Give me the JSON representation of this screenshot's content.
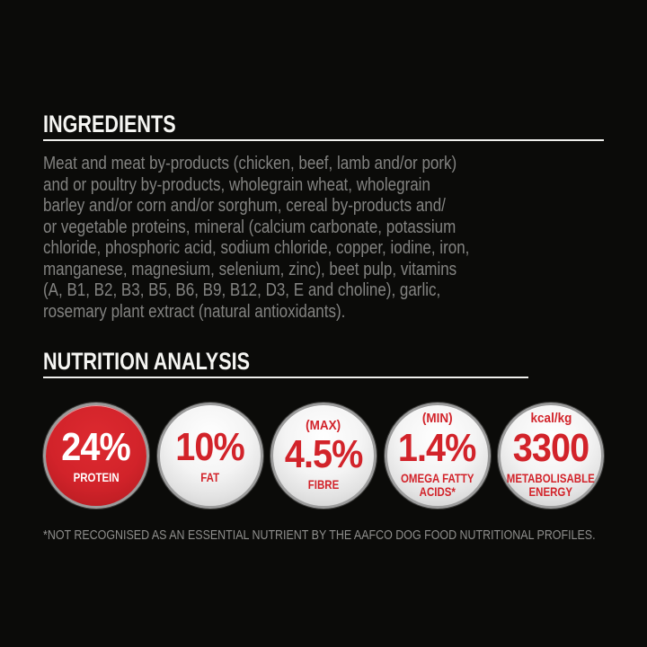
{
  "colors": {
    "background": "#0b0b09",
    "heading_white": "#f5f5f2",
    "body_gray": "#838381",
    "footnote_gray": "#8f8f8d",
    "accent_red": "#d2232a",
    "badge_silver": "#e3e3e3",
    "badge_ring_gray": "#9c9c9c"
  },
  "ingredients": {
    "heading": "INGREDIENTS",
    "body": "Meat and meat by-products (chicken, beef, lamb and/or pork) and or poultry by-products, wholegrain wheat, wholegrain barley and/or corn and/or sorghum, cereal by-products and/or vegetable proteins, mineral (calcium carbonate, potassium chloride, phosphoric acid, sodium chloride, copper, iodine, iron, manganese, magnesium, selenium, zinc), beet pulp, vitamins (A, B1, B2, B3, B5, B6, B9, B12, D3, E and choline), garlic, rosemary plant extract (natural antioxidants).",
    "body_lines": [
      "Meat and meat by-products (chicken, beef, lamb and/or pork)",
      "and or poultry by-products, wholegrain wheat, wholegrain",
      "barley and/or corn and/or sorghum, cereal by-products and/",
      "or vegetable proteins, mineral (calcium carbonate, potassium",
      "chloride, phosphoric acid, sodium chloride, copper, iodine, iron,",
      "manganese, magnesium, selenium, zinc), beet pulp, vitamins",
      "(A, B1, B2, B3, B5, B6, B9, B12, D3, E and choline), garlic,",
      "rosemary plant extract (natural antioxidants)."
    ]
  },
  "nutrition": {
    "heading": "NUTRITION ANALYSIS",
    "badges": [
      {
        "qualifier": "",
        "value": "24%",
        "label": "PROTEIN",
        "variant": "red"
      },
      {
        "qualifier": "",
        "value": "10%",
        "label": "FAT",
        "variant": "silver"
      },
      {
        "qualifier": "(MAX)",
        "value": "4.5%",
        "label": "FIBRE",
        "variant": "silver"
      },
      {
        "qualifier": "(MIN)",
        "value": "1.4%",
        "label": "OMEGA FATTY\nACIDS*",
        "variant": "silver"
      },
      {
        "qualifier": "kcal/kg",
        "value": "3300",
        "label": "METABOLISABLE\nENERGY",
        "variant": "silver"
      }
    ],
    "footnote": "*NOT RECOGNISED AS AN ESSENTIAL NUTRIENT BY THE AAFCO DOG FOOD NUTRITIONAL PROFILES."
  }
}
